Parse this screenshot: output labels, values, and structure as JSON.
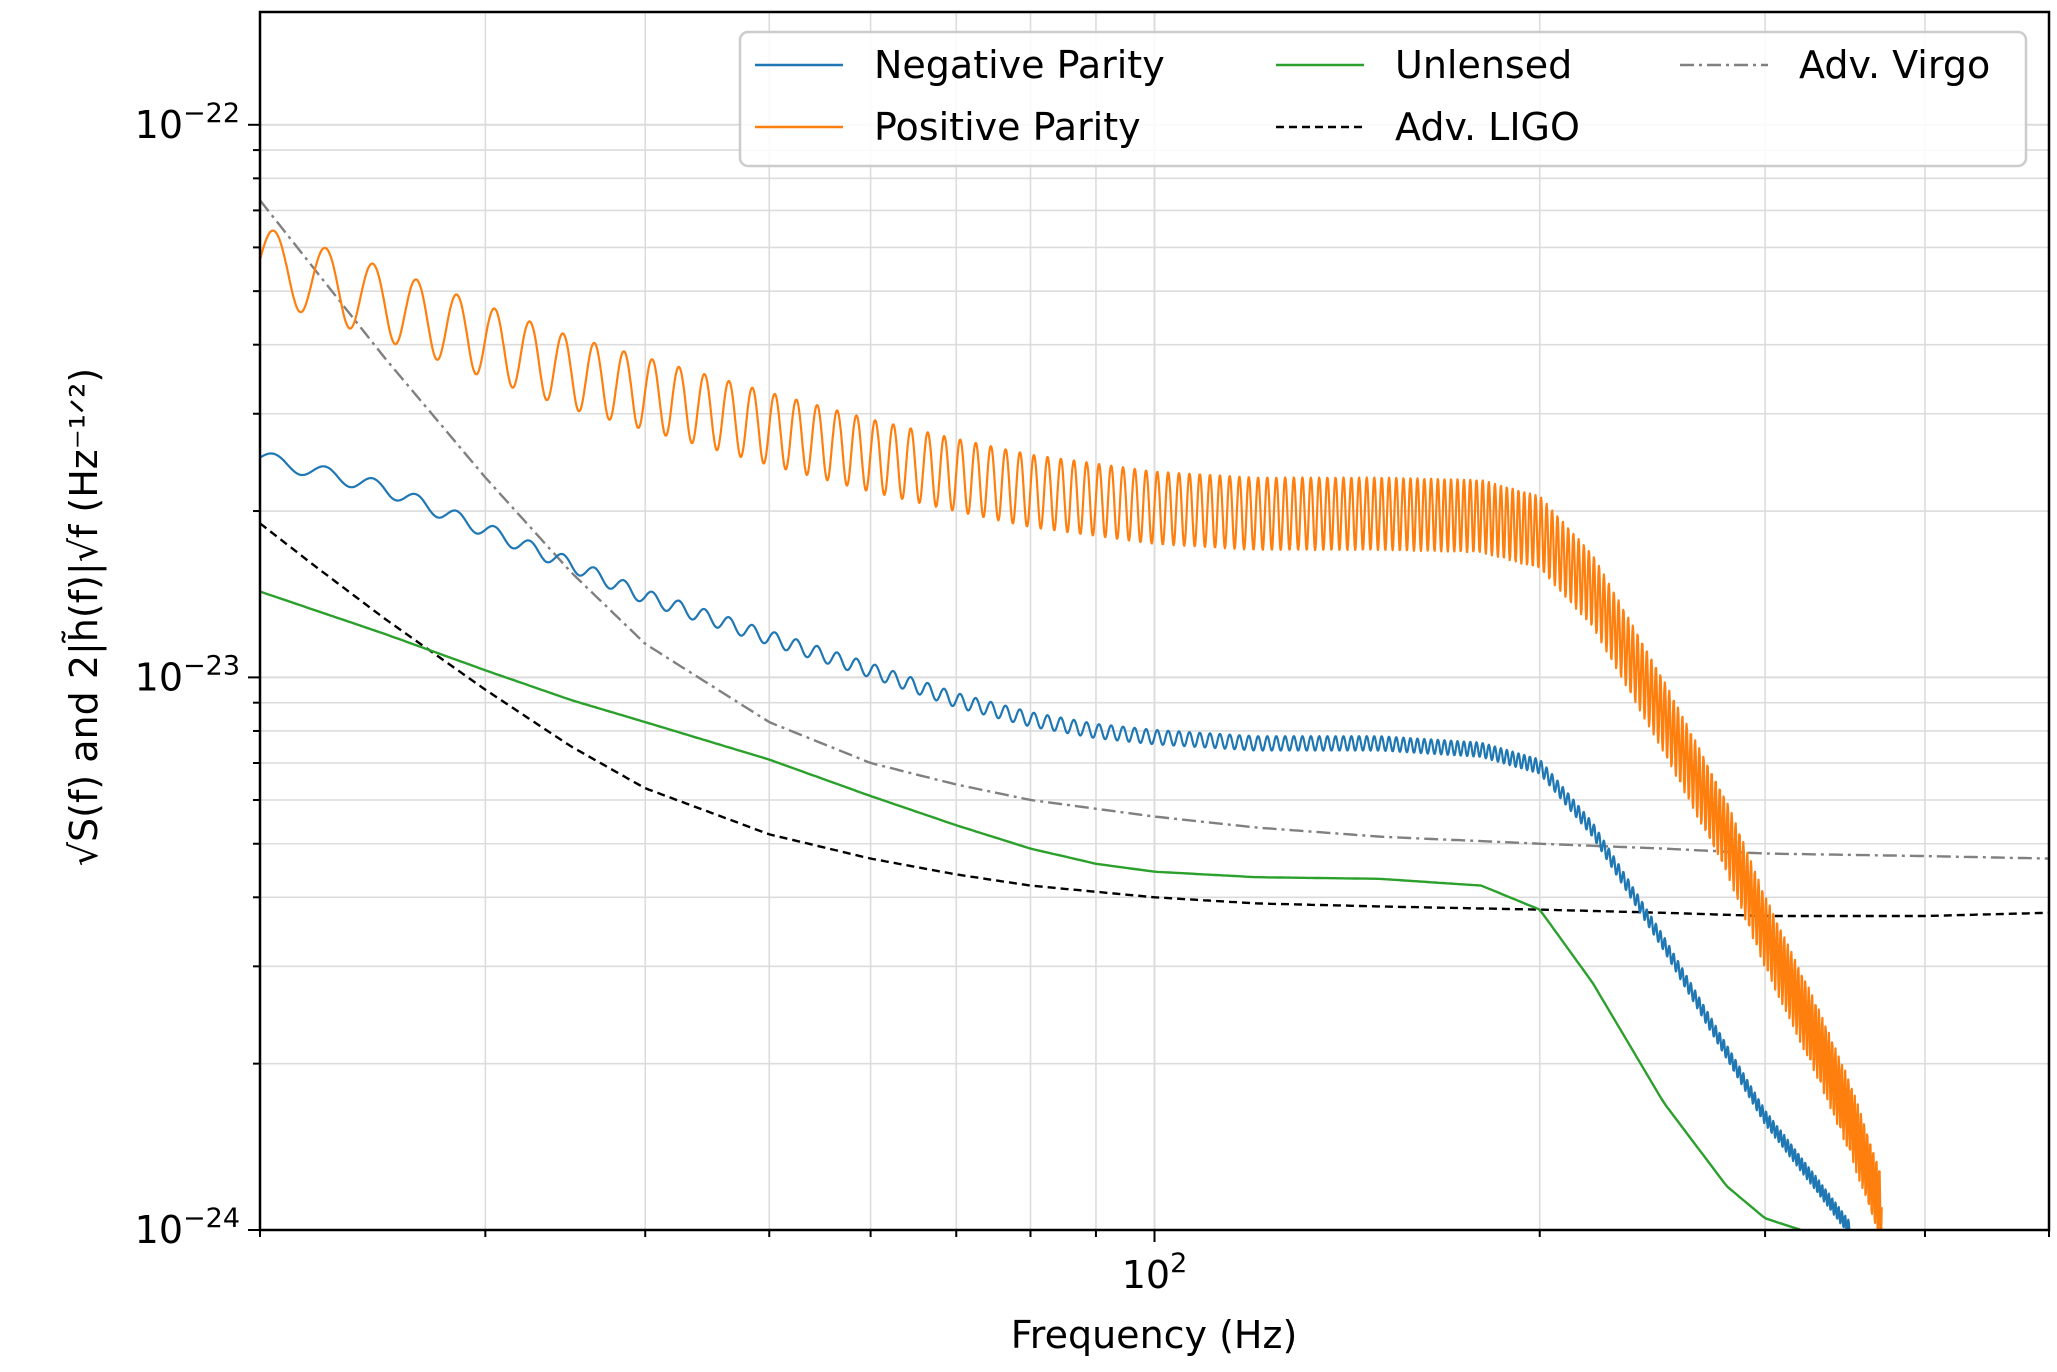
{
  "chart_data": {
    "type": "line",
    "xscale": "log",
    "yscale": "log",
    "xlim": [
      20,
      500
    ],
    "ylim": [
      1e-24,
      1.6e-22
    ],
    "grid": true,
    "xlabel": "Frequency (Hz)",
    "ylabel": "√S(f) and 2|h̃(f)|√f (Hz⁻¹ᐟ²)",
    "x_ticks": [
      {
        "value": 100,
        "label": "10",
        "exp": "2"
      }
    ],
    "y_ticks": [
      {
        "value": 1e-22,
        "label": "10",
        "exp": "−22"
      },
      {
        "value": 1e-23,
        "label": "10",
        "exp": "−23"
      },
      {
        "value": 1e-24,
        "label": "10",
        "exp": "−24"
      }
    ],
    "legend_position": "top-right",
    "series": [
      {
        "name": "Negative Parity",
        "color": "#1f77b4",
        "style": "solid",
        "x": [
          20,
          25,
          30,
          35,
          40,
          50,
          60,
          70,
          80,
          90,
          100,
          120,
          150,
          180,
          200,
          220,
          250,
          280,
          300,
          330,
          350
        ],
        "y": [
          2.5e-23,
          2.2e-23,
          1.85e-23,
          1.6e-23,
          1.4e-23,
          1.18e-23,
          1.03e-23,
          9.1e-24,
          8.4e-24,
          8e-24,
          7.8e-24,
          7.6e-24,
          7.6e-24,
          7.4e-24,
          6.9e-24,
          5.3e-24,
          3.3e-24,
          2.1e-24,
          1.6e-24,
          1.2e-24,
          1e-24
        ],
        "ripple": 0.03
      },
      {
        "name": "Positive Parity",
        "color": "#ff7f0e",
        "style": "solid",
        "x": [
          20,
          25,
          30,
          35,
          40,
          50,
          60,
          70,
          80,
          90,
          100,
          120,
          150,
          180,
          200,
          220,
          250,
          280,
          300,
          330,
          350,
          370
        ],
        "y": [
          5.7e-23,
          4.8e-23,
          4.1e-23,
          3.6e-23,
          3.3e-23,
          2.85e-23,
          2.55e-23,
          2.35e-23,
          2.2e-23,
          2.12e-23,
          2.05e-23,
          2e-23,
          2e-23,
          1.98e-23,
          1.85e-23,
          1.45e-23,
          8.6e-24,
          5.2e-24,
          3.5e-24,
          2.2e-24,
          1.6e-24,
          1.1e-24
        ],
        "ripple": 0.15
      },
      {
        "name": "Unlensed",
        "color": "#2ca02c",
        "style": "solid",
        "x": [
          20,
          25,
          30,
          35,
          40,
          50,
          60,
          70,
          80,
          90,
          100,
          120,
          150,
          180,
          200,
          220,
          250,
          280,
          300,
          320
        ],
        "y": [
          1.43e-23,
          1.2e-23,
          1.03e-23,
          9.1e-24,
          8.3e-24,
          7.1e-24,
          6.1e-24,
          5.4e-24,
          4.9e-24,
          4.6e-24,
          4.45e-24,
          4.35e-24,
          4.32e-24,
          4.2e-24,
          3.8e-24,
          2.8e-24,
          1.7e-24,
          1.2e-24,
          1.05e-24,
          1e-24
        ],
        "ripple": 0
      },
      {
        "name": "Adv. LIGO",
        "color": "#000000",
        "style": "dashed",
        "x": [
          20,
          22,
          25,
          30,
          35,
          40,
          50,
          60,
          70,
          80,
          100,
          120,
          150,
          200,
          250,
          300,
          400,
          500
        ],
        "y": [
          1.9e-23,
          1.6e-23,
          1.28e-23,
          9.5e-24,
          7.5e-24,
          6.3e-24,
          5.2e-24,
          4.7e-24,
          4.4e-24,
          4.2e-24,
          4e-24,
          3.9e-24,
          3.85e-24,
          3.8e-24,
          3.75e-24,
          3.7e-24,
          3.7e-24,
          3.75e-24
        ],
        "ripple": 0
      },
      {
        "name": "Adv. Virgo",
        "color": "#808080",
        "style": "dashdot",
        "x": [
          20,
          25,
          30,
          35,
          40,
          50,
          60,
          70,
          80,
          100,
          120,
          150,
          200,
          250,
          300,
          400,
          500
        ],
        "y": [
          7.3e-23,
          3.8e-23,
          2.3e-23,
          1.55e-23,
          1.15e-23,
          8.3e-24,
          7e-24,
          6.4e-24,
          6e-24,
          5.6e-24,
          5.35e-24,
          5.15e-24,
          5e-24,
          4.9e-24,
          4.8e-24,
          4.75e-24,
          4.7e-24
        ],
        "ripple": 0
      }
    ],
    "legend": [
      {
        "series": 0,
        "label": "Negative Parity"
      },
      {
        "series": 1,
        "label": "Positive Parity"
      },
      {
        "series": 2,
        "label": "Unlensed"
      },
      {
        "series": 3,
        "label": "Adv. LIGO"
      },
      {
        "series": 4,
        "label": "Adv. Virgo"
      }
    ]
  }
}
